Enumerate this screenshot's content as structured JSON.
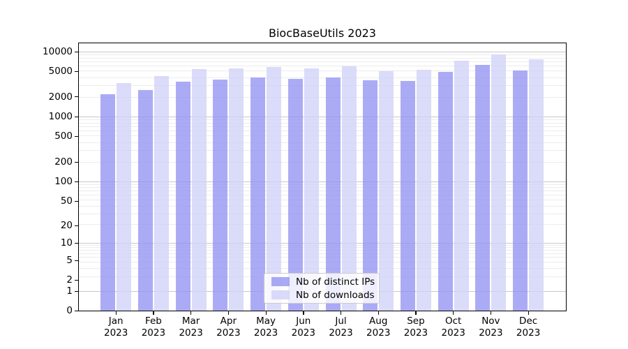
{
  "title": "BiocBaseUtils 2023",
  "legend": {
    "items": [
      {
        "label": "Nb of distinct IPs",
        "color": "rgba(147,147,242,0.8)"
      },
      {
        "label": "Nb of downloads",
        "color": "rgba(209,209,249,0.8)"
      }
    ]
  },
  "colors": {
    "distinct_ips_bar": "rgba(147,147,242,0.78)",
    "downloads_bar": "rgba(209,209,249,0.78)",
    "major_grid": "#c8c8c8",
    "minor_grid": "#ececec",
    "axis": "#000000"
  },
  "y_axis": {
    "tick_labels": [
      "0",
      "1",
      "2",
      "5",
      "10",
      "20",
      "50",
      "100",
      "200",
      "500",
      "1000",
      "2000",
      "5000",
      "10000"
    ]
  },
  "x_axis": {
    "months": [
      "Jan",
      "Feb",
      "Mar",
      "Apr",
      "May",
      "Jun",
      "Jul",
      "Aug",
      "Sep",
      "Oct",
      "Nov",
      "Dec"
    ],
    "year": "2023"
  },
  "chart_data": {
    "type": "bar",
    "title": "BiocBaseUtils 2023",
    "categories": [
      "Jan 2023",
      "Feb 2023",
      "Mar 2023",
      "Apr 2023",
      "May 2023",
      "Jun 2023",
      "Jul 2023",
      "Aug 2023",
      "Sep 2023",
      "Oct 2023",
      "Nov 2023",
      "Dec 2023"
    ],
    "series": [
      {
        "name": "Nb of distinct IPs",
        "values": [
          2200,
          2550,
          3450,
          3700,
          4000,
          3800,
          4000,
          3650,
          3550,
          4900,
          6200,
          5100
        ]
      },
      {
        "name": "Nb of downloads",
        "values": [
          3300,
          4200,
          5400,
          5500,
          5800,
          5500,
          5900,
          5000,
          5200,
          7200,
          9000,
          7600
        ]
      }
    ],
    "yscale": "symlog",
    "yticks": [
      0,
      1,
      2,
      5,
      10,
      20,
      50,
      100,
      200,
      500,
      1000,
      2000,
      5000,
      10000
    ],
    "ylim": [
      0,
      13000
    ],
    "grid": "horizontal, major and minor",
    "legend_position": "inside lower-center"
  }
}
